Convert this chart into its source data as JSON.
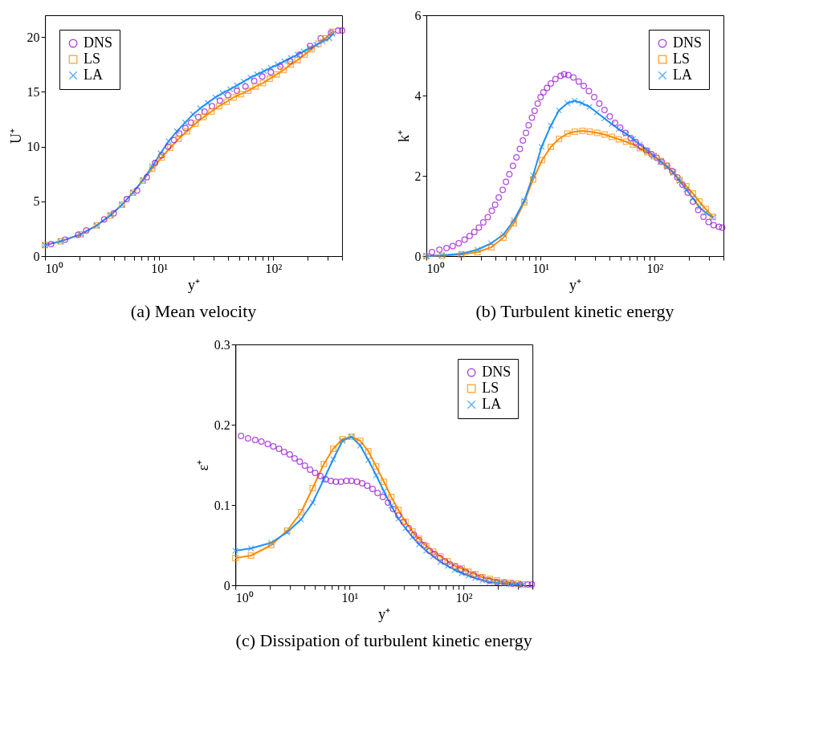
{
  "chart_data": [
    {
      "type": "line",
      "title": "(a) Mean velocity",
      "xlabel": "y⁺",
      "ylabel": "U⁺",
      "log": "x",
      "grid": false,
      "legend": "top left",
      "xlim": [
        1,
        400
      ],
      "ylim": [
        0,
        22
      ],
      "xticks": [
        {
          "value": 1,
          "label": "10⁰"
        },
        {
          "value": 2,
          "label": null
        },
        {
          "value": 3,
          "label": null
        },
        {
          "value": 4,
          "label": null
        },
        {
          "value": 5,
          "label": null
        },
        {
          "value": 6,
          "label": null
        },
        {
          "value": 7,
          "label": null
        },
        {
          "value": 8,
          "label": null
        },
        {
          "value": 9,
          "label": null
        },
        {
          "value": 10,
          "label": "10¹"
        },
        {
          "value": 20,
          "label": null
        },
        {
          "value": 30,
          "label": null
        },
        {
          "value": 40,
          "label": null
        },
        {
          "value": 50,
          "label": null
        },
        {
          "value": 60,
          "label": null
        },
        {
          "value": 70,
          "label": null
        },
        {
          "value": 80,
          "label": null
        },
        {
          "value": 90,
          "label": null
        },
        {
          "value": 100,
          "label": "10²"
        },
        {
          "value": 200,
          "label": null
        },
        {
          "value": 300,
          "label": null
        },
        {
          "value": 400,
          "label": null
        }
      ],
      "yticks": [
        0,
        5,
        10,
        15,
        20
      ],
      "series": [
        {
          "name": "DNS",
          "type": "scatter",
          "marker": "circle",
          "color": "#9400d3",
          "x": [
            1.13,
            1.5,
            1.95,
            2.3,
            3.3,
            4.0,
            5.2,
            6.4,
            7.8,
            9.2,
            10.5,
            12,
            13.5,
            15,
            17,
            19,
            22,
            25,
            29,
            34,
            40,
            48,
            57,
            68,
            80,
            95,
            115,
            140,
            170,
            210,
            260,
            320,
            370,
            400
          ],
          "values": [
            1.1,
            1.5,
            1.95,
            2.35,
            3.35,
            3.9,
            5.2,
            6.0,
            7.2,
            8.5,
            9.2,
            10.0,
            10.6,
            11.2,
            11.7,
            12.2,
            12.7,
            13.2,
            13.7,
            14.2,
            14.7,
            15.1,
            15.5,
            16.0,
            16.4,
            16.8,
            17.3,
            17.8,
            18.4,
            19.2,
            19.9,
            20.4,
            20.6,
            20.6
          ]
        },
        {
          "name": "LS",
          "type": "line",
          "marker": "square",
          "color": "#ff8c00",
          "x": [
            1,
            1.37,
            2.06,
            2.84,
            3.74,
            4.73,
            5.9,
            7.2,
            8.7,
            10.5,
            12.5,
            14.8,
            17.6,
            20.8,
            24.5,
            28.7,
            33.5,
            39,
            45,
            52,
            60,
            70,
            81,
            93,
            107,
            123,
            142,
            163,
            188,
            216,
            248,
            285,
            330
          ],
          "values": [
            1.0,
            1.35,
            2.0,
            2.8,
            3.7,
            4.7,
            5.8,
            6.9,
            8.0,
            9.0,
            9.9,
            10.7,
            11.4,
            12.1,
            12.7,
            13.2,
            13.7,
            14.1,
            14.5,
            14.8,
            15.1,
            15.5,
            15.8,
            16.2,
            16.6,
            17.0,
            17.5,
            17.9,
            18.4,
            18.9,
            19.4,
            19.9,
            20.5
          ]
        },
        {
          "name": "LA",
          "type": "line",
          "marker": "cross",
          "color": "#1e90ff",
          "x": [
            1,
            1.37,
            2.06,
            2.84,
            3.74,
            4.73,
            5.9,
            7.2,
            8.7,
            10.3,
            12.1,
            14.3,
            16.9,
            19.8,
            22.9,
            26.6,
            31,
            36,
            41.9,
            48,
            55,
            63,
            72,
            83,
            95,
            109,
            125,
            142,
            163,
            184,
            209,
            238,
            271,
            308,
            330
          ],
          "values": [
            1.0,
            1.35,
            2.0,
            2.8,
            3.75,
            4.7,
            5.8,
            6.95,
            8.2,
            9.4,
            10.5,
            11.4,
            12.2,
            12.95,
            13.5,
            14.0,
            14.5,
            14.9,
            15.25,
            15.6,
            15.95,
            16.3,
            16.6,
            16.9,
            17.2,
            17.5,
            17.8,
            18.1,
            18.4,
            18.7,
            19.0,
            19.3,
            19.6,
            19.9,
            20.3
          ]
        }
      ]
    },
    {
      "type": "line",
      "title": "(b) Turbulent kinetic energy",
      "xlabel": "y⁺",
      "ylabel": "k⁺",
      "log": "x",
      "grid": false,
      "legend": "top right",
      "xlim": [
        1,
        400
      ],
      "ylim": [
        0,
        6
      ],
      "xticks": [
        {
          "value": 1,
          "label": "10⁰"
        },
        {
          "value": 2,
          "label": null
        },
        {
          "value": 3,
          "label": null
        },
        {
          "value": 4,
          "label": null
        },
        {
          "value": 5,
          "label": null
        },
        {
          "value": 6,
          "label": null
        },
        {
          "value": 7,
          "label": null
        },
        {
          "value": 8,
          "label": null
        },
        {
          "value": 9,
          "label": null
        },
        {
          "value": 10,
          "label": "10¹"
        },
        {
          "value": 20,
          "label": null
        },
        {
          "value": 30,
          "label": null
        },
        {
          "value": 40,
          "label": null
        },
        {
          "value": 50,
          "label": null
        },
        {
          "value": 60,
          "label": null
        },
        {
          "value": 70,
          "label": null
        },
        {
          "value": 80,
          "label": null
        },
        {
          "value": 90,
          "label": null
        },
        {
          "value": 100,
          "label": "10²"
        },
        {
          "value": 200,
          "label": null
        },
        {
          "value": 300,
          "label": null
        },
        {
          "value": 400,
          "label": null
        }
      ],
      "yticks": [
        0,
        2,
        4,
        6
      ],
      "series": [
        {
          "name": "DNS",
          "type": "scatter",
          "marker": "circle",
          "color": "#9400d3",
          "x": [
            1.12,
            1.3,
            1.5,
            1.7,
            1.92,
            2.16,
            2.39,
            2.63,
            2.88,
            3.15,
            3.45,
            3.74,
            4.0,
            4.3,
            4.66,
            4.98,
            5.33,
            5.73,
            6.15,
            6.59,
            7.0,
            7.45,
            7.86,
            8.4,
            8.87,
            9.44,
            10,
            10.6,
            11.4,
            12.3,
            13.5,
            15,
            16.1,
            17.5,
            19.4,
            21.6,
            23.9,
            26.5,
            29.5,
            32.7,
            36.3,
            40.4,
            44.9,
            49.9,
            55.4,
            61.5,
            68.3,
            75.9,
            84.3,
            93.6,
            104,
            115,
            128,
            142,
            158,
            175,
            195,
            216,
            240,
            267,
            296,
            328,
            364,
            390
          ],
          "values": [
            0.1,
            0.16,
            0.2,
            0.25,
            0.32,
            0.41,
            0.5,
            0.6,
            0.71,
            0.84,
            0.97,
            1.13,
            1.28,
            1.46,
            1.65,
            1.85,
            2.04,
            2.25,
            2.46,
            2.67,
            2.88,
            3.07,
            3.26,
            3.45,
            3.62,
            3.8,
            3.96,
            4.08,
            4.19,
            4.3,
            4.41,
            4.49,
            4.53,
            4.51,
            4.45,
            4.35,
            4.24,
            4.11,
            3.96,
            3.8,
            3.64,
            3.48,
            3.32,
            3.2,
            3.07,
            2.94,
            2.84,
            2.72,
            2.63,
            2.54,
            2.45,
            2.35,
            2.25,
            2.12,
            1.96,
            1.78,
            1.58,
            1.36,
            1.15,
            0.98,
            0.85,
            0.77,
            0.73,
            0.71
          ]
        },
        {
          "name": "LS",
          "type": "line",
          "marker": "square",
          "color": "#ff8c00",
          "x": [
            1,
            1.37,
            2.03,
            2.8,
            3.7,
            4.73,
            5.83,
            7.2,
            8.6,
            10.3,
            12.3,
            14.5,
            17.2,
            19.9,
            23.3,
            27,
            31.4,
            36.3,
            42,
            48.4,
            56,
            64.5,
            74,
            86,
            98,
            113,
            128,
            145,
            165,
            189,
            216,
            246,
            280,
            323
          ],
          "values": [
            0,
            0.01,
            0.04,
            0.1,
            0.22,
            0.46,
            0.82,
            1.34,
            1.91,
            2.39,
            2.72,
            2.92,
            3.05,
            3.1,
            3.12,
            3.1,
            3.07,
            3.03,
            2.97,
            2.91,
            2.85,
            2.78,
            2.69,
            2.59,
            2.49,
            2.37,
            2.25,
            2.09,
            1.9,
            1.74,
            1.56,
            1.36,
            1.17,
            0.98
          ]
        },
        {
          "name": "LA",
          "type": "line",
          "marker": "cross",
          "color": "#1e90ff",
          "x": [
            1,
            1.37,
            2.03,
            2.8,
            3.7,
            4.73,
            5.83,
            7.2,
            8.6,
            10.2,
            12.3,
            14.5,
            17.2,
            19.9,
            23,
            26.8,
            31,
            36.3,
            42,
            48.4,
            56,
            64.5,
            74,
            86,
            98,
            113,
            128,
            145,
            165,
            189,
            216,
            246,
            280,
            323
          ],
          "values": [
            0,
            0.02,
            0.06,
            0.16,
            0.32,
            0.54,
            0.89,
            1.38,
            2.01,
            2.72,
            3.25,
            3.63,
            3.81,
            3.87,
            3.81,
            3.72,
            3.58,
            3.43,
            3.29,
            3.16,
            3.05,
            2.92,
            2.78,
            2.64,
            2.5,
            2.35,
            2.22,
            2.08,
            1.87,
            1.66,
            1.44,
            1.22,
            1.08,
            0.96
          ]
        }
      ]
    },
    {
      "type": "line",
      "title": "(c) Dissipation of turbulent kinetic energy",
      "xlabel": "y⁺",
      "ylabel": "ε⁺",
      "log": "x",
      "grid": false,
      "legend": "top right",
      "xlim": [
        1,
        400
      ],
      "ylim": [
        0,
        0.3
      ],
      "xticks": [
        {
          "value": 1,
          "label": "10⁰"
        },
        {
          "value": 2,
          "label": null
        },
        {
          "value": 3,
          "label": null
        },
        {
          "value": 4,
          "label": null
        },
        {
          "value": 5,
          "label": null
        },
        {
          "value": 6,
          "label": null
        },
        {
          "value": 7,
          "label": null
        },
        {
          "value": 8,
          "label": null
        },
        {
          "value": 9,
          "label": null
        },
        {
          "value": 10,
          "label": "10¹"
        },
        {
          "value": 20,
          "label": null
        },
        {
          "value": 30,
          "label": null
        },
        {
          "value": 40,
          "label": null
        },
        {
          "value": 50,
          "label": null
        },
        {
          "value": 60,
          "label": null
        },
        {
          "value": 70,
          "label": null
        },
        {
          "value": 80,
          "label": null
        },
        {
          "value": 90,
          "label": null
        },
        {
          "value": 100,
          "label": "10²"
        },
        {
          "value": 200,
          "label": null
        },
        {
          "value": 300,
          "label": null
        },
        {
          "value": 400,
          "label": null
        }
      ],
      "yticks": [
        0,
        0.1,
        0.2,
        0.3
      ],
      "series": [
        {
          "name": "DNS",
          "type": "scatter",
          "marker": "circle",
          "color": "#9400d3",
          "x": [
            1.12,
            1.29,
            1.49,
            1.69,
            1.92,
            2.15,
            2.41,
            2.67,
            2.99,
            3.3,
            3.66,
            4.06,
            4.51,
            5.0,
            5.56,
            6.17,
            6.85,
            7.6,
            8.4,
            9.4,
            10.4,
            11.6,
            12.9,
            14.3,
            15.9,
            17.6,
            19.6,
            21.7,
            24.1,
            26.8,
            29.7,
            33,
            36.6,
            40.7,
            45.2,
            50.1,
            55.6,
            61.8,
            68.6,
            76,
            84.5,
            93.8,
            104,
            122,
            142,
            167,
            195,
            228,
            266,
            312,
            364,
            395
          ],
          "values": [
            0.186,
            0.183,
            0.181,
            0.179,
            0.176,
            0.173,
            0.17,
            0.166,
            0.163,
            0.158,
            0.154,
            0.149,
            0.144,
            0.14,
            0.136,
            0.132,
            0.13,
            0.129,
            0.129,
            0.13,
            0.13,
            0.129,
            0.127,
            0.124,
            0.12,
            0.115,
            0.11,
            0.103,
            0.095,
            0.087,
            0.079,
            0.071,
            0.063,
            0.056,
            0.05,
            0.043,
            0.039,
            0.034,
            0.03,
            0.026,
            0.023,
            0.02,
            0.017,
            0.013,
            0.01,
            0.006,
            0.004,
            0.003,
            0.002,
            0.001,
            0.001,
            0.001
          ]
        },
        {
          "name": "LS",
          "type": "line",
          "marker": "square",
          "color": "#ff8c00",
          "x": [
            1,
            1.37,
            2.06,
            2.84,
            3.76,
            4.75,
            5.95,
            7.2,
            8.66,
            10.4,
            12.4,
            14.6,
            17.1,
            20,
            23.2,
            26.8,
            30.9,
            35.6,
            40.6,
            46.9,
            54,
            62.6,
            72.2,
            83.4,
            96,
            110,
            126,
            146,
            169,
            195,
            225,
            259,
            299,
            330
          ],
          "values": [
            0.034,
            0.037,
            0.05,
            0.068,
            0.091,
            0.121,
            0.151,
            0.17,
            0.182,
            0.185,
            0.18,
            0.167,
            0.148,
            0.129,
            0.11,
            0.094,
            0.079,
            0.067,
            0.058,
            0.049,
            0.042,
            0.036,
            0.03,
            0.024,
            0.021,
            0.017,
            0.014,
            0.01,
            0.008,
            0.006,
            0.004,
            0.003,
            0.002,
            0.001
          ]
        },
        {
          "name": "LA",
          "type": "line",
          "marker": "cross",
          "color": "#1e90ff",
          "x": [
            1,
            1.37,
            2.06,
            2.84,
            3.76,
            4.75,
            5.95,
            7.2,
            8.66,
            10.4,
            12.4,
            14.6,
            17.1,
            20,
            23.2,
            26.8,
            30.9,
            35.6,
            40.6,
            46.9,
            54,
            62.6,
            72.2,
            83.4,
            96,
            110,
            126,
            146,
            169,
            195,
            225,
            259,
            299,
            330
          ],
          "values": [
            0.043,
            0.046,
            0.053,
            0.066,
            0.082,
            0.103,
            0.132,
            0.157,
            0.18,
            0.185,
            0.174,
            0.156,
            0.137,
            0.117,
            0.099,
            0.083,
            0.071,
            0.06,
            0.051,
            0.043,
            0.036,
            0.029,
            0.024,
            0.019,
            0.015,
            0.012,
            0.009,
            0.006,
            0.004,
            0.003,
            0.002,
            0.001,
            0.001,
            0.001
          ]
        }
      ]
    }
  ]
}
